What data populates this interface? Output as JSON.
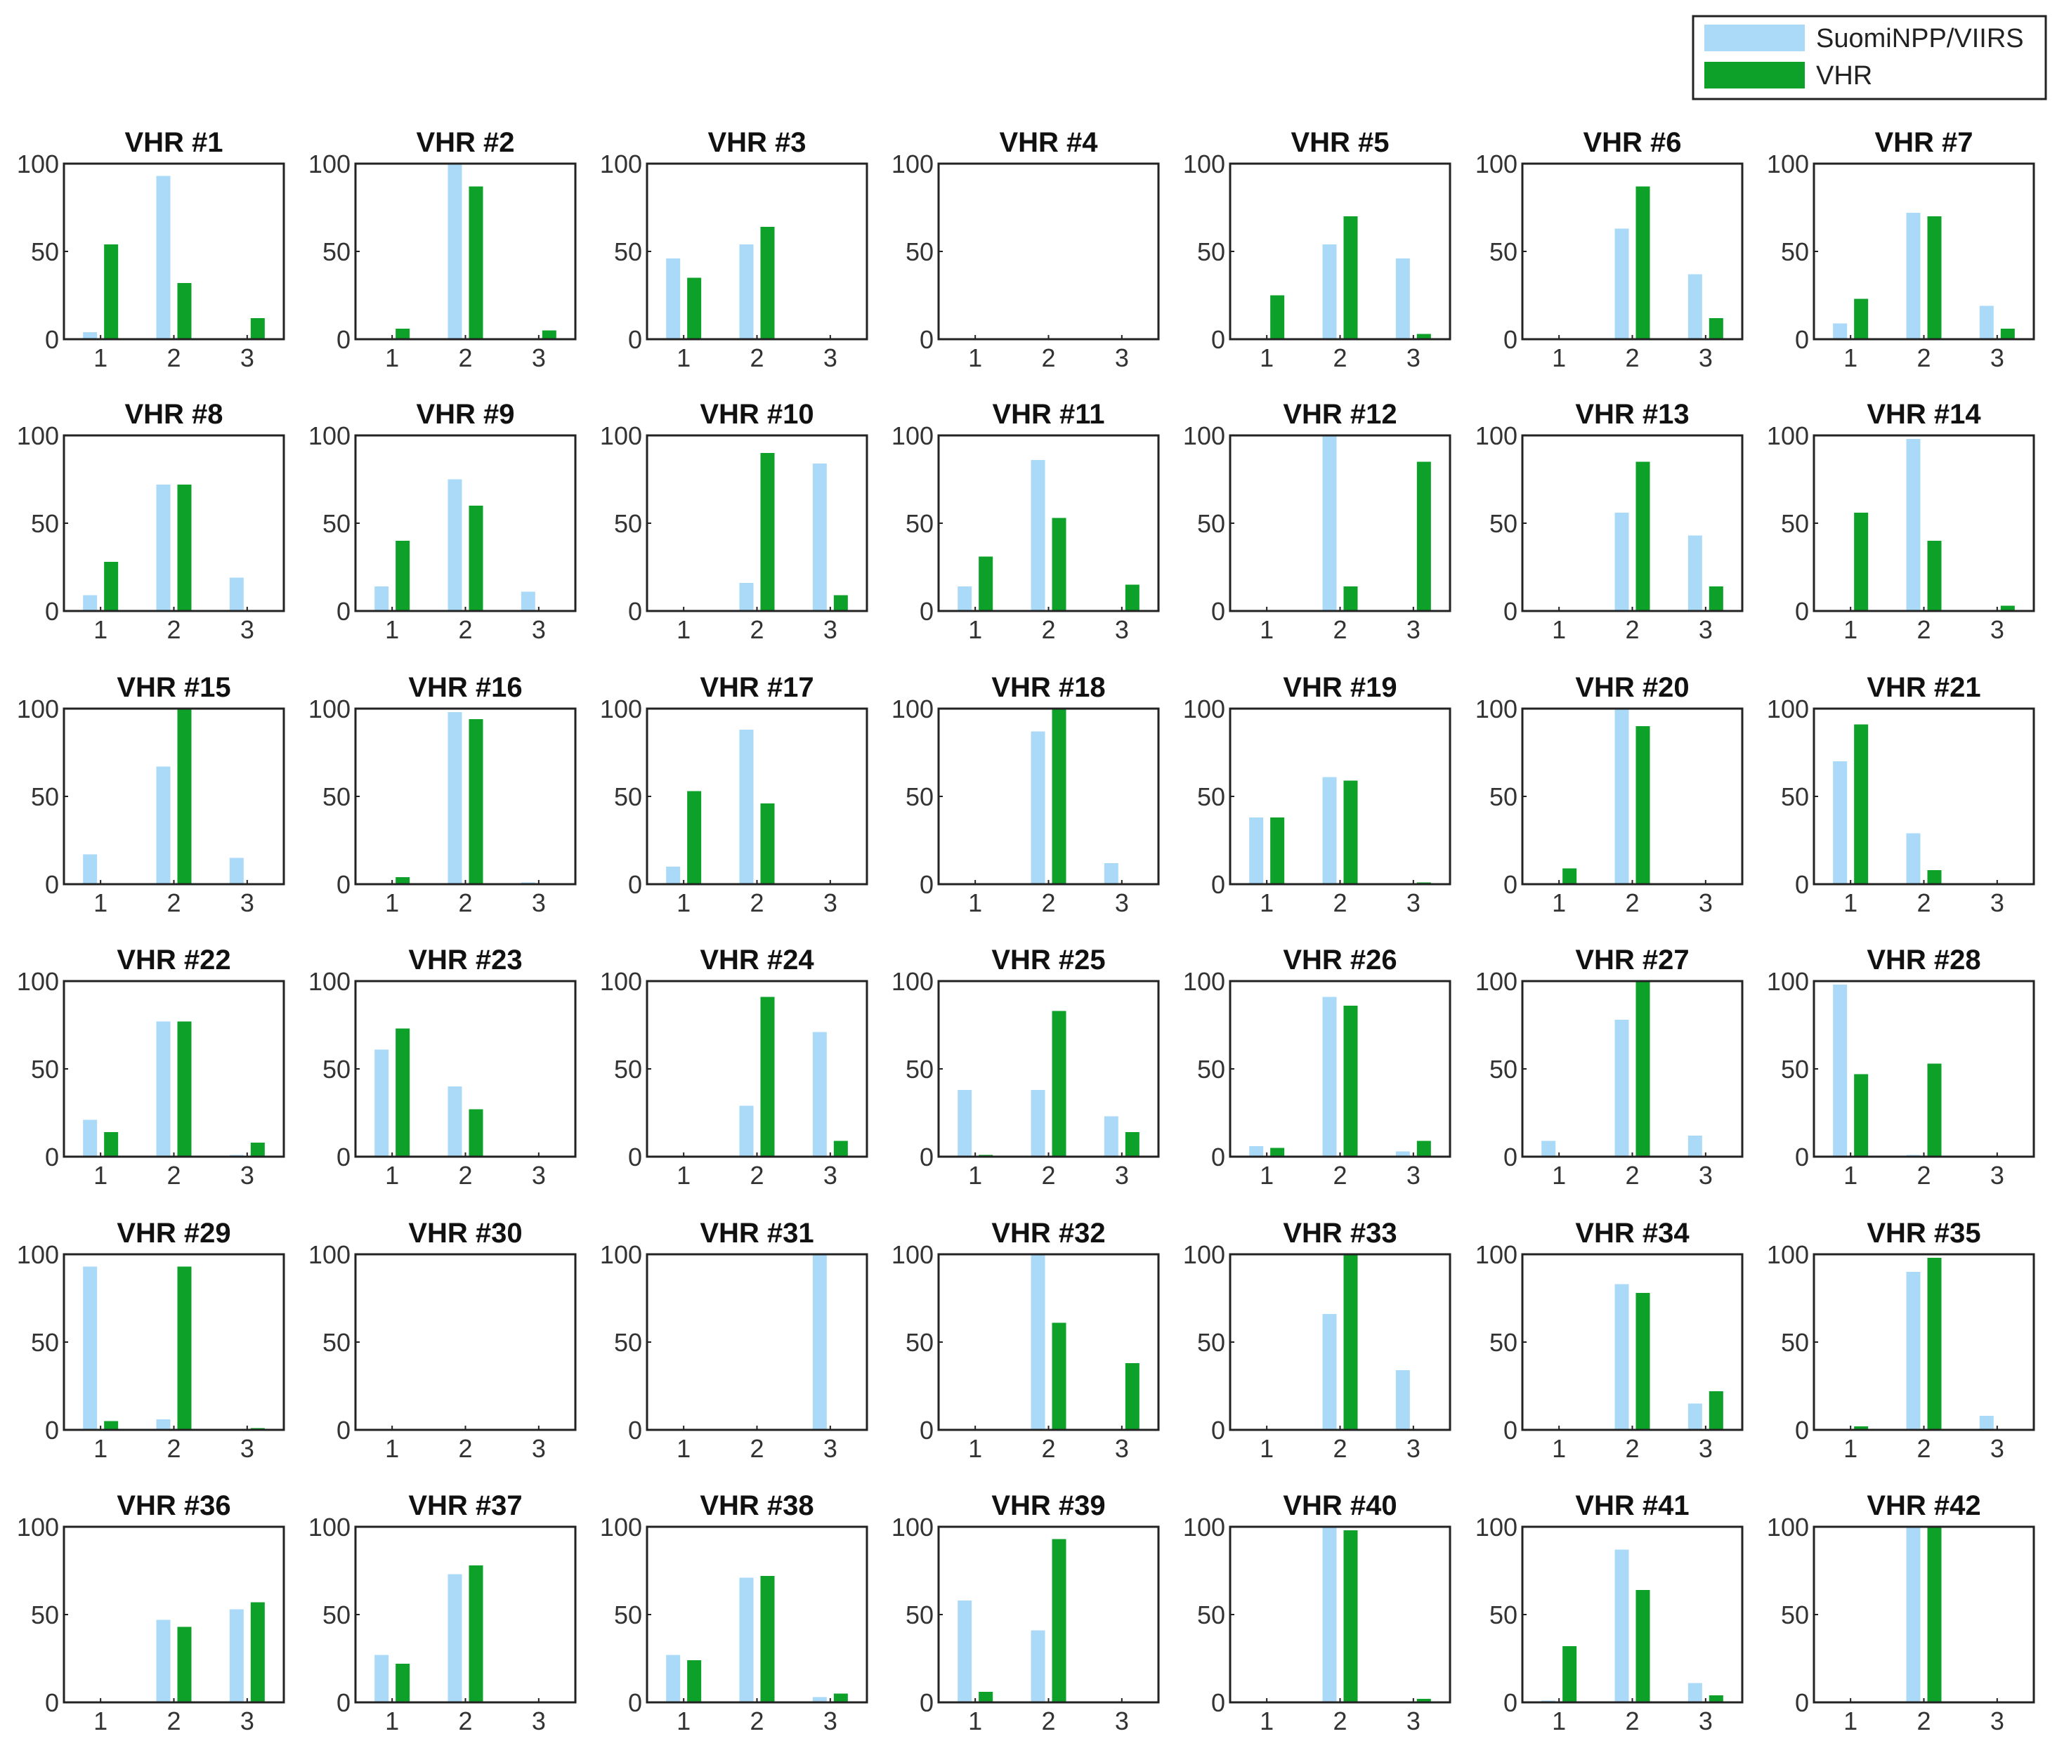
{
  "legend": {
    "position": "top-right",
    "entries": [
      {
        "label": "SuomiNPP/VIIRS",
        "color": "#abdaf9"
      },
      {
        "label": "VHR",
        "color": "#0ea12a"
      }
    ]
  },
  "chart_data": {
    "type": "bar",
    "layout": "small multiples, 6 rows x 7 columns",
    "categories": [
      "1",
      "2",
      "3"
    ],
    "ylim": [
      0,
      100
    ],
    "yticks": [
      "0",
      "50",
      "100"
    ],
    "series_names": [
      "SuomiNPP/VIIRS",
      "VHR"
    ],
    "colors": [
      "#abdaf9",
      "#0ea12a"
    ],
    "panels": [
      {
        "title": "VHR #1",
        "series": [
          {
            "name": "SuomiNPP/VIIRS",
            "values": [
              4,
              93,
              0
            ]
          },
          {
            "name": "VHR",
            "values": [
              54,
              32,
              12
            ]
          }
        ]
      },
      {
        "title": "VHR #2",
        "series": [
          {
            "name": "SuomiNPP/VIIRS",
            "values": [
              0,
              100,
              0
            ]
          },
          {
            "name": "VHR",
            "values": [
              6,
              87,
              5
            ]
          }
        ]
      },
      {
        "title": "VHR #3",
        "series": [
          {
            "name": "SuomiNPP/VIIRS",
            "values": [
              46,
              54,
              0
            ]
          },
          {
            "name": "VHR",
            "values": [
              35,
              64,
              0
            ]
          }
        ]
      },
      {
        "title": "VHR #4",
        "series": [
          {
            "name": "SuomiNPP/VIIRS",
            "values": [
              0,
              0,
              0
            ]
          },
          {
            "name": "VHR",
            "values": [
              0,
              0,
              0
            ]
          }
        ]
      },
      {
        "title": "VHR #5",
        "series": [
          {
            "name": "SuomiNPP/VIIRS",
            "values": [
              0,
              54,
              46
            ]
          },
          {
            "name": "VHR",
            "values": [
              25,
              70,
              3
            ]
          }
        ]
      },
      {
        "title": "VHR #6",
        "series": [
          {
            "name": "SuomiNPP/VIIRS",
            "values": [
              0,
              63,
              37
            ]
          },
          {
            "name": "VHR",
            "values": [
              0,
              87,
              12
            ]
          }
        ]
      },
      {
        "title": "VHR #7",
        "series": [
          {
            "name": "SuomiNPP/VIIRS",
            "values": [
              9,
              72,
              19
            ]
          },
          {
            "name": "VHR",
            "values": [
              23,
              70,
              6
            ]
          }
        ]
      },
      {
        "title": "VHR #8",
        "series": [
          {
            "name": "SuomiNPP/VIIRS",
            "values": [
              9,
              72,
              19
            ]
          },
          {
            "name": "VHR",
            "values": [
              28,
              72,
              0
            ]
          }
        ]
      },
      {
        "title": "VHR #9",
        "series": [
          {
            "name": "SuomiNPP/VIIRS",
            "values": [
              14,
              75,
              11
            ]
          },
          {
            "name": "VHR",
            "values": [
              40,
              60,
              0
            ]
          }
        ]
      },
      {
        "title": "VHR #10",
        "series": [
          {
            "name": "SuomiNPP/VIIRS",
            "values": [
              0,
              16,
              84
            ]
          },
          {
            "name": "VHR",
            "values": [
              0,
              90,
              9
            ]
          }
        ]
      },
      {
        "title": "VHR #11",
        "series": [
          {
            "name": "SuomiNPP/VIIRS",
            "values": [
              14,
              86,
              0
            ]
          },
          {
            "name": "VHR",
            "values": [
              31,
              53,
              15
            ]
          }
        ]
      },
      {
        "title": "VHR #12",
        "series": [
          {
            "name": "SuomiNPP/VIIRS",
            "values": [
              0,
              100,
              0
            ]
          },
          {
            "name": "VHR",
            "values": [
              0,
              14,
              85
            ]
          }
        ]
      },
      {
        "title": "VHR #13",
        "series": [
          {
            "name": "SuomiNPP/VIIRS",
            "values": [
              0,
              56,
              43
            ]
          },
          {
            "name": "VHR",
            "values": [
              0,
              85,
              14
            ]
          }
        ]
      },
      {
        "title": "VHR #14",
        "series": [
          {
            "name": "SuomiNPP/VIIRS",
            "values": [
              0,
              98,
              0
            ]
          },
          {
            "name": "VHR",
            "values": [
              56,
              40,
              3
            ]
          }
        ]
      },
      {
        "title": "VHR #15",
        "series": [
          {
            "name": "SuomiNPP/VIIRS",
            "values": [
              17,
              67,
              15
            ]
          },
          {
            "name": "VHR",
            "values": [
              0,
              100,
              0
            ]
          }
        ]
      },
      {
        "title": "VHR #16",
        "series": [
          {
            "name": "SuomiNPP/VIIRS",
            "values": [
              0,
              98,
              1
            ]
          },
          {
            "name": "VHR",
            "values": [
              4,
              94,
              0
            ]
          }
        ]
      },
      {
        "title": "VHR #17",
        "series": [
          {
            "name": "SuomiNPP/VIIRS",
            "values": [
              10,
              88,
              0
            ]
          },
          {
            "name": "VHR",
            "values": [
              53,
              46,
              0
            ]
          }
        ]
      },
      {
        "title": "VHR #18",
        "series": [
          {
            "name": "SuomiNPP/VIIRS",
            "values": [
              0,
              87,
              12
            ]
          },
          {
            "name": "VHR",
            "values": [
              0,
              100,
              0
            ]
          }
        ]
      },
      {
        "title": "VHR #19",
        "series": [
          {
            "name": "SuomiNPP/VIIRS",
            "values": [
              38,
              61,
              0
            ]
          },
          {
            "name": "VHR",
            "values": [
              38,
              59,
              1
            ]
          }
        ]
      },
      {
        "title": "VHR #20",
        "series": [
          {
            "name": "SuomiNPP/VIIRS",
            "values": [
              0,
              100,
              0
            ]
          },
          {
            "name": "VHR",
            "values": [
              9,
              90,
              0
            ]
          }
        ]
      },
      {
        "title": "VHR #21",
        "series": [
          {
            "name": "SuomiNPP/VIIRS",
            "values": [
              70,
              29,
              0
            ]
          },
          {
            "name": "VHR",
            "values": [
              91,
              8,
              0
            ]
          }
        ]
      },
      {
        "title": "VHR #22",
        "series": [
          {
            "name": "SuomiNPP/VIIRS",
            "values": [
              21,
              77,
              1
            ]
          },
          {
            "name": "VHR",
            "values": [
              14,
              77,
              8
            ]
          }
        ]
      },
      {
        "title": "VHR #23",
        "series": [
          {
            "name": "SuomiNPP/VIIRS",
            "values": [
              61,
              40,
              0
            ]
          },
          {
            "name": "VHR",
            "values": [
              73,
              27,
              0
            ]
          }
        ]
      },
      {
        "title": "VHR #24",
        "series": [
          {
            "name": "SuomiNPP/VIIRS",
            "values": [
              0,
              29,
              71
            ]
          },
          {
            "name": "VHR",
            "values": [
              0,
              91,
              9
            ]
          }
        ]
      },
      {
        "title": "VHR #25",
        "series": [
          {
            "name": "SuomiNPP/VIIRS",
            "values": [
              38,
              38,
              23
            ]
          },
          {
            "name": "VHR",
            "values": [
              1,
              83,
              14
            ]
          }
        ]
      },
      {
        "title": "VHR #26",
        "series": [
          {
            "name": "SuomiNPP/VIIRS",
            "values": [
              6,
              91,
              3
            ]
          },
          {
            "name": "VHR",
            "values": [
              5,
              86,
              9
            ]
          }
        ]
      },
      {
        "title": "VHR #27",
        "series": [
          {
            "name": "SuomiNPP/VIIRS",
            "values": [
              9,
              78,
              12
            ]
          },
          {
            "name": "VHR",
            "values": [
              0,
              100,
              0
            ]
          }
        ]
      },
      {
        "title": "VHR #28",
        "series": [
          {
            "name": "SuomiNPP/VIIRS",
            "values": [
              98,
              1,
              0
            ]
          },
          {
            "name": "VHR",
            "values": [
              47,
              53,
              0
            ]
          }
        ]
      },
      {
        "title": "VHR #29",
        "series": [
          {
            "name": "SuomiNPP/VIIRS",
            "values": [
              93,
              6,
              0
            ]
          },
          {
            "name": "VHR",
            "values": [
              5,
              93,
              1
            ]
          }
        ]
      },
      {
        "title": "VHR #30",
        "series": [
          {
            "name": "SuomiNPP/VIIRS",
            "values": [
              0,
              0,
              0
            ]
          },
          {
            "name": "VHR",
            "values": [
              0,
              0,
              0
            ]
          }
        ]
      },
      {
        "title": "VHR #31",
        "series": [
          {
            "name": "SuomiNPP/VIIRS",
            "values": [
              0,
              0,
              100
            ]
          },
          {
            "name": "VHR",
            "values": [
              0,
              0,
              0
            ]
          }
        ]
      },
      {
        "title": "VHR #32",
        "series": [
          {
            "name": "SuomiNPP/VIIRS",
            "values": [
              0,
              100,
              0
            ]
          },
          {
            "name": "VHR",
            "values": [
              0,
              61,
              38
            ]
          }
        ]
      },
      {
        "title": "VHR #33",
        "series": [
          {
            "name": "SuomiNPP/VIIRS",
            "values": [
              0,
              66,
              34
            ]
          },
          {
            "name": "VHR",
            "values": [
              0,
              100,
              0
            ]
          }
        ]
      },
      {
        "title": "VHR #34",
        "series": [
          {
            "name": "SuomiNPP/VIIRS",
            "values": [
              0,
              83,
              15
            ]
          },
          {
            "name": "VHR",
            "values": [
              0,
              78,
              22
            ]
          }
        ]
      },
      {
        "title": "VHR #35",
        "series": [
          {
            "name": "SuomiNPP/VIIRS",
            "values": [
              0,
              90,
              8
            ]
          },
          {
            "name": "VHR",
            "values": [
              2,
              98,
              0
            ]
          }
        ]
      },
      {
        "title": "VHR #36",
        "series": [
          {
            "name": "SuomiNPP/VIIRS",
            "values": [
              0,
              47,
              53
            ]
          },
          {
            "name": "VHR",
            "values": [
              0,
              43,
              57
            ]
          }
        ]
      },
      {
        "title": "VHR #37",
        "series": [
          {
            "name": "SuomiNPP/VIIRS",
            "values": [
              27,
              73,
              0
            ]
          },
          {
            "name": "VHR",
            "values": [
              22,
              78,
              0
            ]
          }
        ]
      },
      {
        "title": "VHR #38",
        "series": [
          {
            "name": "SuomiNPP/VIIRS",
            "values": [
              27,
              71,
              3
            ]
          },
          {
            "name": "VHR",
            "values": [
              24,
              72,
              5
            ]
          }
        ]
      },
      {
        "title": "VHR #39",
        "series": [
          {
            "name": "SuomiNPP/VIIRS",
            "values": [
              58,
              41,
              0
            ]
          },
          {
            "name": "VHR",
            "values": [
              6,
              93,
              0
            ]
          }
        ]
      },
      {
        "title": "VHR #40",
        "series": [
          {
            "name": "SuomiNPP/VIIRS",
            "values": [
              0,
              100,
              0
            ]
          },
          {
            "name": "VHR",
            "values": [
              0,
              98,
              2
            ]
          }
        ]
      },
      {
        "title": "VHR #41",
        "series": [
          {
            "name": "SuomiNPP/VIIRS",
            "values": [
              1,
              87,
              11
            ]
          },
          {
            "name": "VHR",
            "values": [
              32,
              64,
              4
            ]
          }
        ]
      },
      {
        "title": "VHR #42",
        "series": [
          {
            "name": "SuomiNPP/VIIRS",
            "values": [
              0,
              100,
              0
            ]
          },
          {
            "name": "VHR",
            "values": [
              0,
              100,
              0
            ]
          }
        ]
      }
    ]
  }
}
